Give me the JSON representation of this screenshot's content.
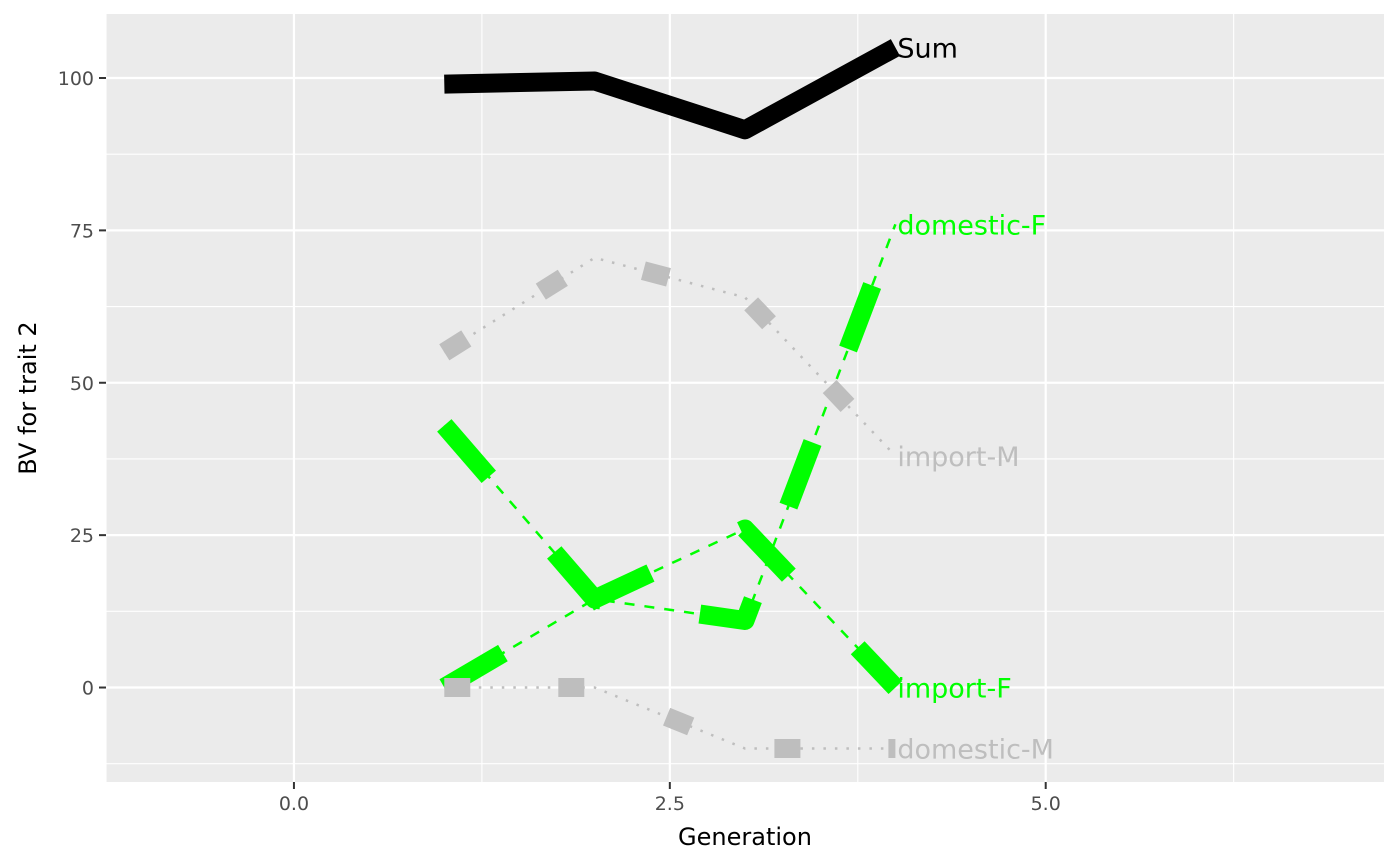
{
  "chart_data": {
    "type": "line",
    "title": "",
    "xlabel": "Generation",
    "ylabel": "BV for trait 2",
    "xlim": [
      -1.25,
      7.25
    ],
    "ylim": [
      -15.5,
      110.5
    ],
    "x_ticks": [
      0,
      2.5,
      5
    ],
    "x_tick_labels": [
      "0.0",
      "2.5",
      "5.0"
    ],
    "y_ticks": [
      0,
      25,
      50,
      75,
      100
    ],
    "y_tick_labels": [
      "0",
      "25",
      "50",
      "75",
      "100"
    ],
    "grid": true,
    "legend": "none",
    "series": [
      {
        "name": "Sum",
        "color": "#000000",
        "line_style": "solid",
        "thick_segments": "continuous",
        "x": [
          1,
          2,
          3,
          4
        ],
        "y": [
          99,
          99.5,
          91.5,
          105
        ]
      },
      {
        "name": "domestic-F",
        "color": "#00ff00",
        "line_style": "dashed",
        "thick_segments": "dash",
        "x": [
          1,
          2,
          3,
          4
        ],
        "y": [
          43,
          14.5,
          11,
          76
        ]
      },
      {
        "name": "import-F",
        "color": "#00ff00",
        "line_style": "dashed",
        "thick_segments": "dash",
        "x": [
          1,
          2,
          3,
          4
        ],
        "y": [
          0,
          14.5,
          26,
          0
        ]
      },
      {
        "name": "import-M",
        "color": "#bebebe",
        "line_style": "dotted",
        "thick_segments": "dot",
        "x": [
          1,
          2,
          3,
          4
        ],
        "y": [
          55,
          70.5,
          64,
          38
        ]
      },
      {
        "name": "domestic-M",
        "color": "#bebebe",
        "line_style": "dotted",
        "thick_segments": "dot",
        "x": [
          1,
          2,
          3,
          4
        ],
        "y": [
          0,
          0,
          -10,
          -10
        ]
      }
    ]
  }
}
